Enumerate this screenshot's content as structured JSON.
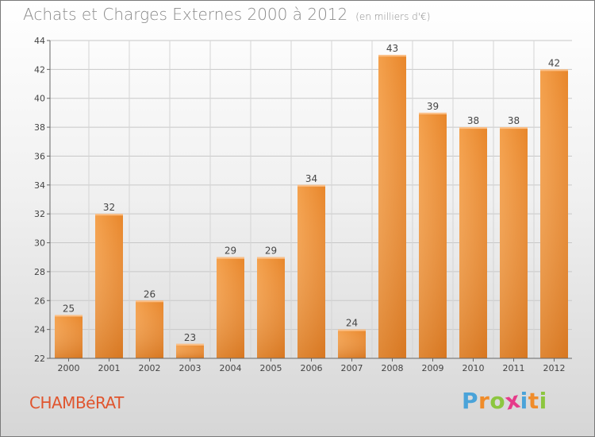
{
  "chart_data": {
    "type": "bar",
    "title": "Achats et Charges Externes 2000 à 2012",
    "subtitle": "(en milliers d'€)",
    "categories": [
      "2000",
      "2001",
      "2002",
      "2003",
      "2004",
      "2005",
      "2006",
      "2007",
      "2008",
      "2009",
      "2010",
      "2011",
      "2012"
    ],
    "values": [
      25,
      32,
      26,
      23,
      29,
      29,
      34,
      24,
      43,
      39,
      38,
      38,
      42
    ],
    "ylim": [
      22,
      44
    ],
    "yticks": [
      22,
      24,
      26,
      28,
      30,
      32,
      34,
      36,
      38,
      40,
      42,
      44
    ],
    "grid": true,
    "bar_color": "#f28c2a",
    "xlabel": "",
    "ylabel": ""
  },
  "commune": "CHAMBéRAT",
  "brand": {
    "letters": [
      "P",
      "r",
      "o",
      "x",
      "i",
      "t",
      "i"
    ],
    "colors": [
      "#4aa3d9",
      "#f08c2a",
      "#8cc63f",
      "#e63b8a",
      "#4aa3d9",
      "#f08c2a",
      "#8cc63f"
    ]
  }
}
